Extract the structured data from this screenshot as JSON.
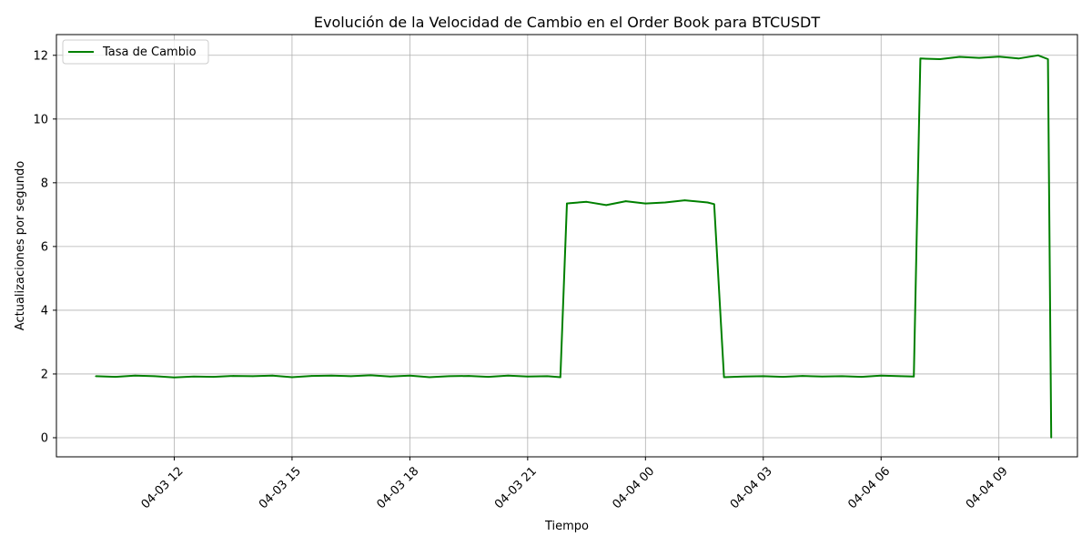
{
  "chart_data": {
    "type": "line",
    "title": "Evolución de la Velocidad de Cambio en el Order Book para BTCUSDT",
    "xlabel": "Tiempo",
    "ylabel": "Actualizaciones por segundo",
    "grid": true,
    "legend_position": "top-left",
    "xlim": [
      "2024-04-03 09:00",
      "2024-04-04 11:00"
    ],
    "ylim": [
      -0.6,
      12.65
    ],
    "x_ticks": [
      {
        "value": "2024-04-03 12:00",
        "label": "04-03 12"
      },
      {
        "value": "2024-04-03 15:00",
        "label": "04-03 15"
      },
      {
        "value": "2024-04-03 18:00",
        "label": "04-03 18"
      },
      {
        "value": "2024-04-03 21:00",
        "label": "04-03 21"
      },
      {
        "value": "2024-04-04 00:00",
        "label": "04-04 00"
      },
      {
        "value": "2024-04-04 03:00",
        "label": "04-04 03"
      },
      {
        "value": "2024-04-04 06:00",
        "label": "04-04 06"
      },
      {
        "value": "2024-04-04 09:00",
        "label": "04-04 09"
      }
    ],
    "y_ticks": [
      {
        "value": 0,
        "label": "0"
      },
      {
        "value": 2,
        "label": "2"
      },
      {
        "value": 4,
        "label": "4"
      },
      {
        "value": 6,
        "label": "6"
      },
      {
        "value": 8,
        "label": "8"
      },
      {
        "value": 10,
        "label": "10"
      },
      {
        "value": 12,
        "label": "12"
      }
    ],
    "series": [
      {
        "name": "Tasa de Cambio",
        "color": "#008000",
        "x": [
          "2024-04-03 10:00",
          "2024-04-03 10:30",
          "2024-04-03 11:00",
          "2024-04-03 11:30",
          "2024-04-03 12:00",
          "2024-04-03 12:30",
          "2024-04-03 13:00",
          "2024-04-03 13:30",
          "2024-04-03 14:00",
          "2024-04-03 14:30",
          "2024-04-03 15:00",
          "2024-04-03 15:30",
          "2024-04-03 16:00",
          "2024-04-03 16:30",
          "2024-04-03 17:00",
          "2024-04-03 17:30",
          "2024-04-03 18:00",
          "2024-04-03 18:30",
          "2024-04-03 19:00",
          "2024-04-03 19:30",
          "2024-04-03 20:00",
          "2024-04-03 20:30",
          "2024-04-03 21:00",
          "2024-04-03 21:30",
          "2024-04-03 21:50",
          "2024-04-03 22:00",
          "2024-04-03 22:05",
          "2024-04-03 22:30",
          "2024-04-03 23:00",
          "2024-04-03 23:30",
          "2024-04-04 00:00",
          "2024-04-04 00:30",
          "2024-04-04 01:00",
          "2024-04-04 01:35",
          "2024-04-04 01:45",
          "2024-04-04 02:00",
          "2024-04-04 02:30",
          "2024-04-04 03:00",
          "2024-04-04 03:30",
          "2024-04-04 04:00",
          "2024-04-04 04:30",
          "2024-04-04 05:00",
          "2024-04-04 05:30",
          "2024-04-04 06:00",
          "2024-04-04 06:30",
          "2024-04-04 06:50",
          "2024-04-04 07:00",
          "2024-04-04 07:30",
          "2024-04-04 08:00",
          "2024-04-04 08:30",
          "2024-04-04 09:00",
          "2024-04-04 09:30",
          "2024-04-04 10:00",
          "2024-04-04 10:15",
          "2024-04-04 10:20"
        ],
        "values": [
          1.93,
          1.91,
          1.95,
          1.93,
          1.89,
          1.92,
          1.91,
          1.94,
          1.93,
          1.95,
          1.9,
          1.94,
          1.95,
          1.93,
          1.96,
          1.92,
          1.95,
          1.9,
          1.93,
          1.94,
          1.91,
          1.95,
          1.92,
          1.93,
          1.9,
          7.35,
          7.36,
          7.4,
          7.3,
          7.42,
          7.35,
          7.38,
          7.45,
          7.38,
          7.33,
          1.9,
          1.92,
          1.93,
          1.91,
          1.94,
          1.92,
          1.93,
          1.91,
          1.95,
          1.93,
          1.92,
          11.9,
          11.88,
          11.95,
          11.92,
          11.96,
          11.9,
          12.0,
          11.88,
          0.0
        ]
      }
    ]
  }
}
